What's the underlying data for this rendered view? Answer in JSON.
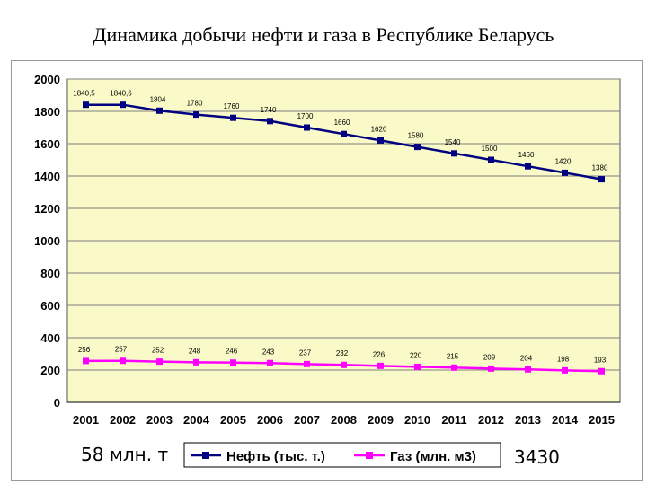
{
  "title": "Динамика добычи нефти и газа в Республике Беларусь",
  "left_note": "58 млн. т",
  "right_note": "3430",
  "colors": {
    "plot_bg": "#fafac8",
    "oil": "#000080",
    "gas": "#ff00ff",
    "grid": "#7f7f7f"
  },
  "chart_data": {
    "type": "line",
    "title": "",
    "xlabel": "",
    "ylabel": "",
    "x": [
      "2001",
      "2002",
      "2003",
      "2004",
      "2005",
      "2006",
      "2007",
      "2008",
      "2009",
      "2010",
      "2011",
      "2012",
      "2013",
      "2014",
      "2015"
    ],
    "ylim": [
      0,
      2000
    ],
    "yticks": [
      "0",
      "200",
      "400",
      "600",
      "800",
      "1000",
      "1200",
      "1400",
      "1600",
      "1800",
      "2000"
    ],
    "grid": true,
    "legend_position": "bottom",
    "series": [
      {
        "name": "Нефть (тыс. т.)",
        "values": [
          1840.5,
          1840.6,
          1804,
          1780,
          1760,
          1740,
          1700,
          1660,
          1620,
          1580,
          1540,
          1500,
          1460,
          1420,
          1380
        ],
        "labels": [
          "1840,5",
          "1840,6",
          "1804",
          "1780",
          "1760",
          "1740",
          "1700",
          "1660",
          "1620",
          "1580",
          "1540",
          "1500",
          "1460",
          "1420",
          "1380"
        ]
      },
      {
        "name": "Газ (млн. м3)",
        "values": [
          256,
          257,
          252,
          248,
          246,
          243,
          237,
          232,
          226,
          220,
          215,
          209,
          204,
          198,
          193
        ],
        "labels": [
          "256",
          "257",
          "252",
          "248",
          "246",
          "243",
          "237",
          "232",
          "226",
          "220",
          "215",
          "209",
          "204",
          "198",
          "193"
        ]
      }
    ]
  }
}
